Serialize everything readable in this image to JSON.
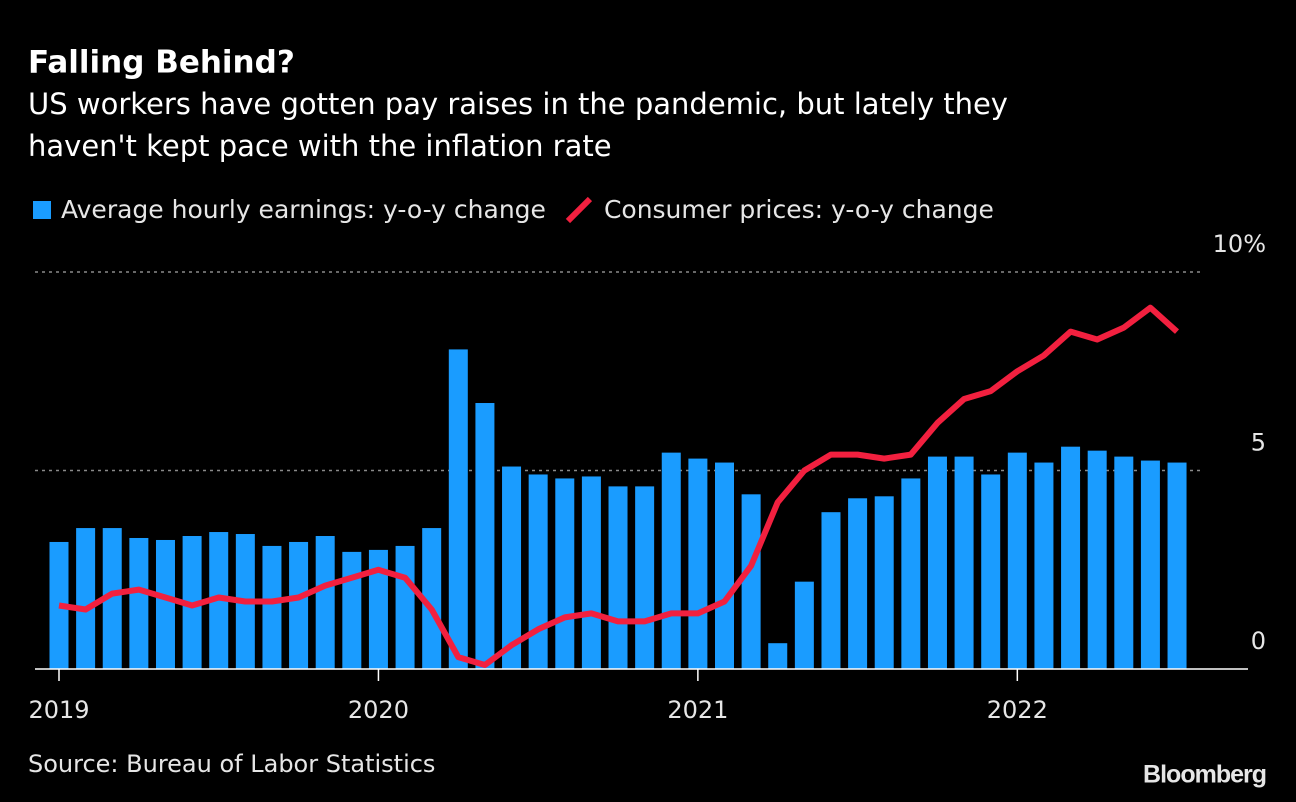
{
  "chart_data": {
    "type": "bar_line",
    "title": "Falling Behind?",
    "subtitle": [
      "US workers have gotten pay raises in the pandemic, but lately they",
      "haven't kept pace with the inflation rate"
    ],
    "source": "Source: Bureau of Labor Statistics",
    "brand": "Bloomberg",
    "categories": [
      "2019",
      null,
      null,
      null,
      null,
      null,
      null,
      null,
      null,
      null,
      null,
      null,
      "2020",
      null,
      null,
      null,
      null,
      null,
      null,
      null,
      null,
      null,
      null,
      null,
      "2021",
      null,
      null,
      null,
      null,
      null,
      null,
      null,
      null,
      null,
      null,
      null,
      "2022",
      null,
      null,
      null,
      null,
      null,
      null
    ],
    "series": [
      {
        "name": "Average hourly earnings: y-o-y change",
        "type": "bar",
        "color": "#1a9cff",
        "values": [
          3.2,
          3.55,
          3.55,
          3.3,
          3.25,
          3.35,
          3.45,
          3.4,
          3.1,
          3.2,
          3.35,
          2.95,
          3.0,
          3.1,
          3.55,
          8.05,
          6.7,
          5.1,
          4.9,
          4.8,
          4.85,
          4.6,
          4.6,
          5.45,
          5.3,
          5.2,
          4.4,
          0.65,
          2.2,
          3.95,
          4.3,
          4.35,
          4.8,
          5.35,
          5.35,
          4.9,
          5.45,
          5.2,
          5.6,
          5.5,
          5.35,
          5.25,
          5.2
        ]
      },
      {
        "name": "Consumer prices: y-o-y change",
        "type": "line",
        "color": "#f2203f",
        "values": [
          1.6,
          1.5,
          1.9,
          2.0,
          1.8,
          1.6,
          1.8,
          1.7,
          1.7,
          1.8,
          2.1,
          2.3,
          2.5,
          2.3,
          1.5,
          0.3,
          0.1,
          0.6,
          1.0,
          1.3,
          1.4,
          1.2,
          1.2,
          1.4,
          1.4,
          1.7,
          2.6,
          4.2,
          5.0,
          5.4,
          5.4,
          5.3,
          5.4,
          6.2,
          6.8,
          7.0,
          7.5,
          7.9,
          8.5,
          8.3,
          8.6,
          9.1,
          8.5
        ]
      }
    ],
    "ylim": [
      0,
      10
    ],
    "yticks": [
      0,
      5,
      {
        "value": 10,
        "label": "10%"
      }
    ],
    "grid": true
  }
}
